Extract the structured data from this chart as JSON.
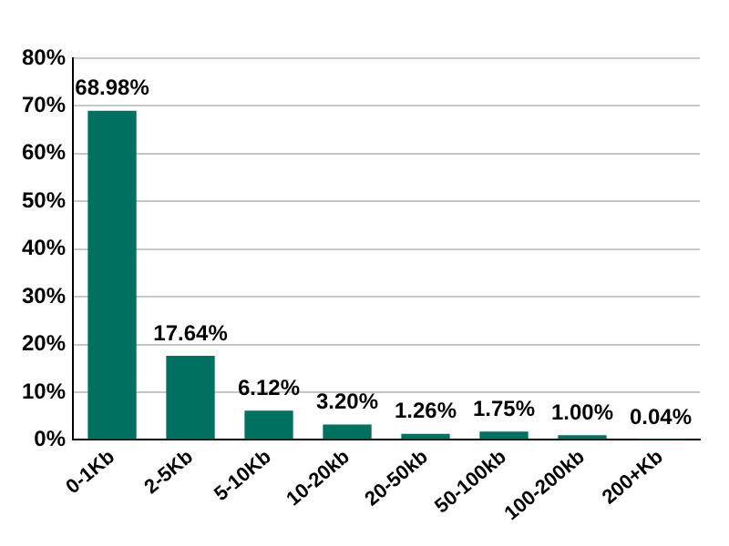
{
  "chart_data": {
    "type": "bar",
    "categories": [
      "0-1Kb",
      "2-5Kb",
      "5-10Kb",
      "10-20kb",
      "20-50kb",
      "50-100kb",
      "100-200kb",
      "200+Kb"
    ],
    "values": [
      68.98,
      17.64,
      6.12,
      3.2,
      1.26,
      1.75,
      1.0,
      0.04
    ],
    "value_labels": [
      "68.98%",
      "17.64%",
      "6.12%",
      "3.20%",
      "1.26%",
      "1.75%",
      "1.00%",
      "0.04%"
    ],
    "color": "#007060",
    "ylim": [
      0,
      80
    ],
    "yticks": [
      {
        "value": 0,
        "label": "0%"
      },
      {
        "value": 10,
        "label": "10%"
      },
      {
        "value": 20,
        "label": "20%"
      },
      {
        "value": 30,
        "label": "30%"
      },
      {
        "value": 40,
        "label": "40%"
      },
      {
        "value": 50,
        "label": "50%"
      },
      {
        "value": 60,
        "label": "60%"
      },
      {
        "value": 70,
        "label": "70%"
      },
      {
        "value": 80,
        "label": "80%"
      }
    ],
    "grid": "y",
    "legend": false
  }
}
